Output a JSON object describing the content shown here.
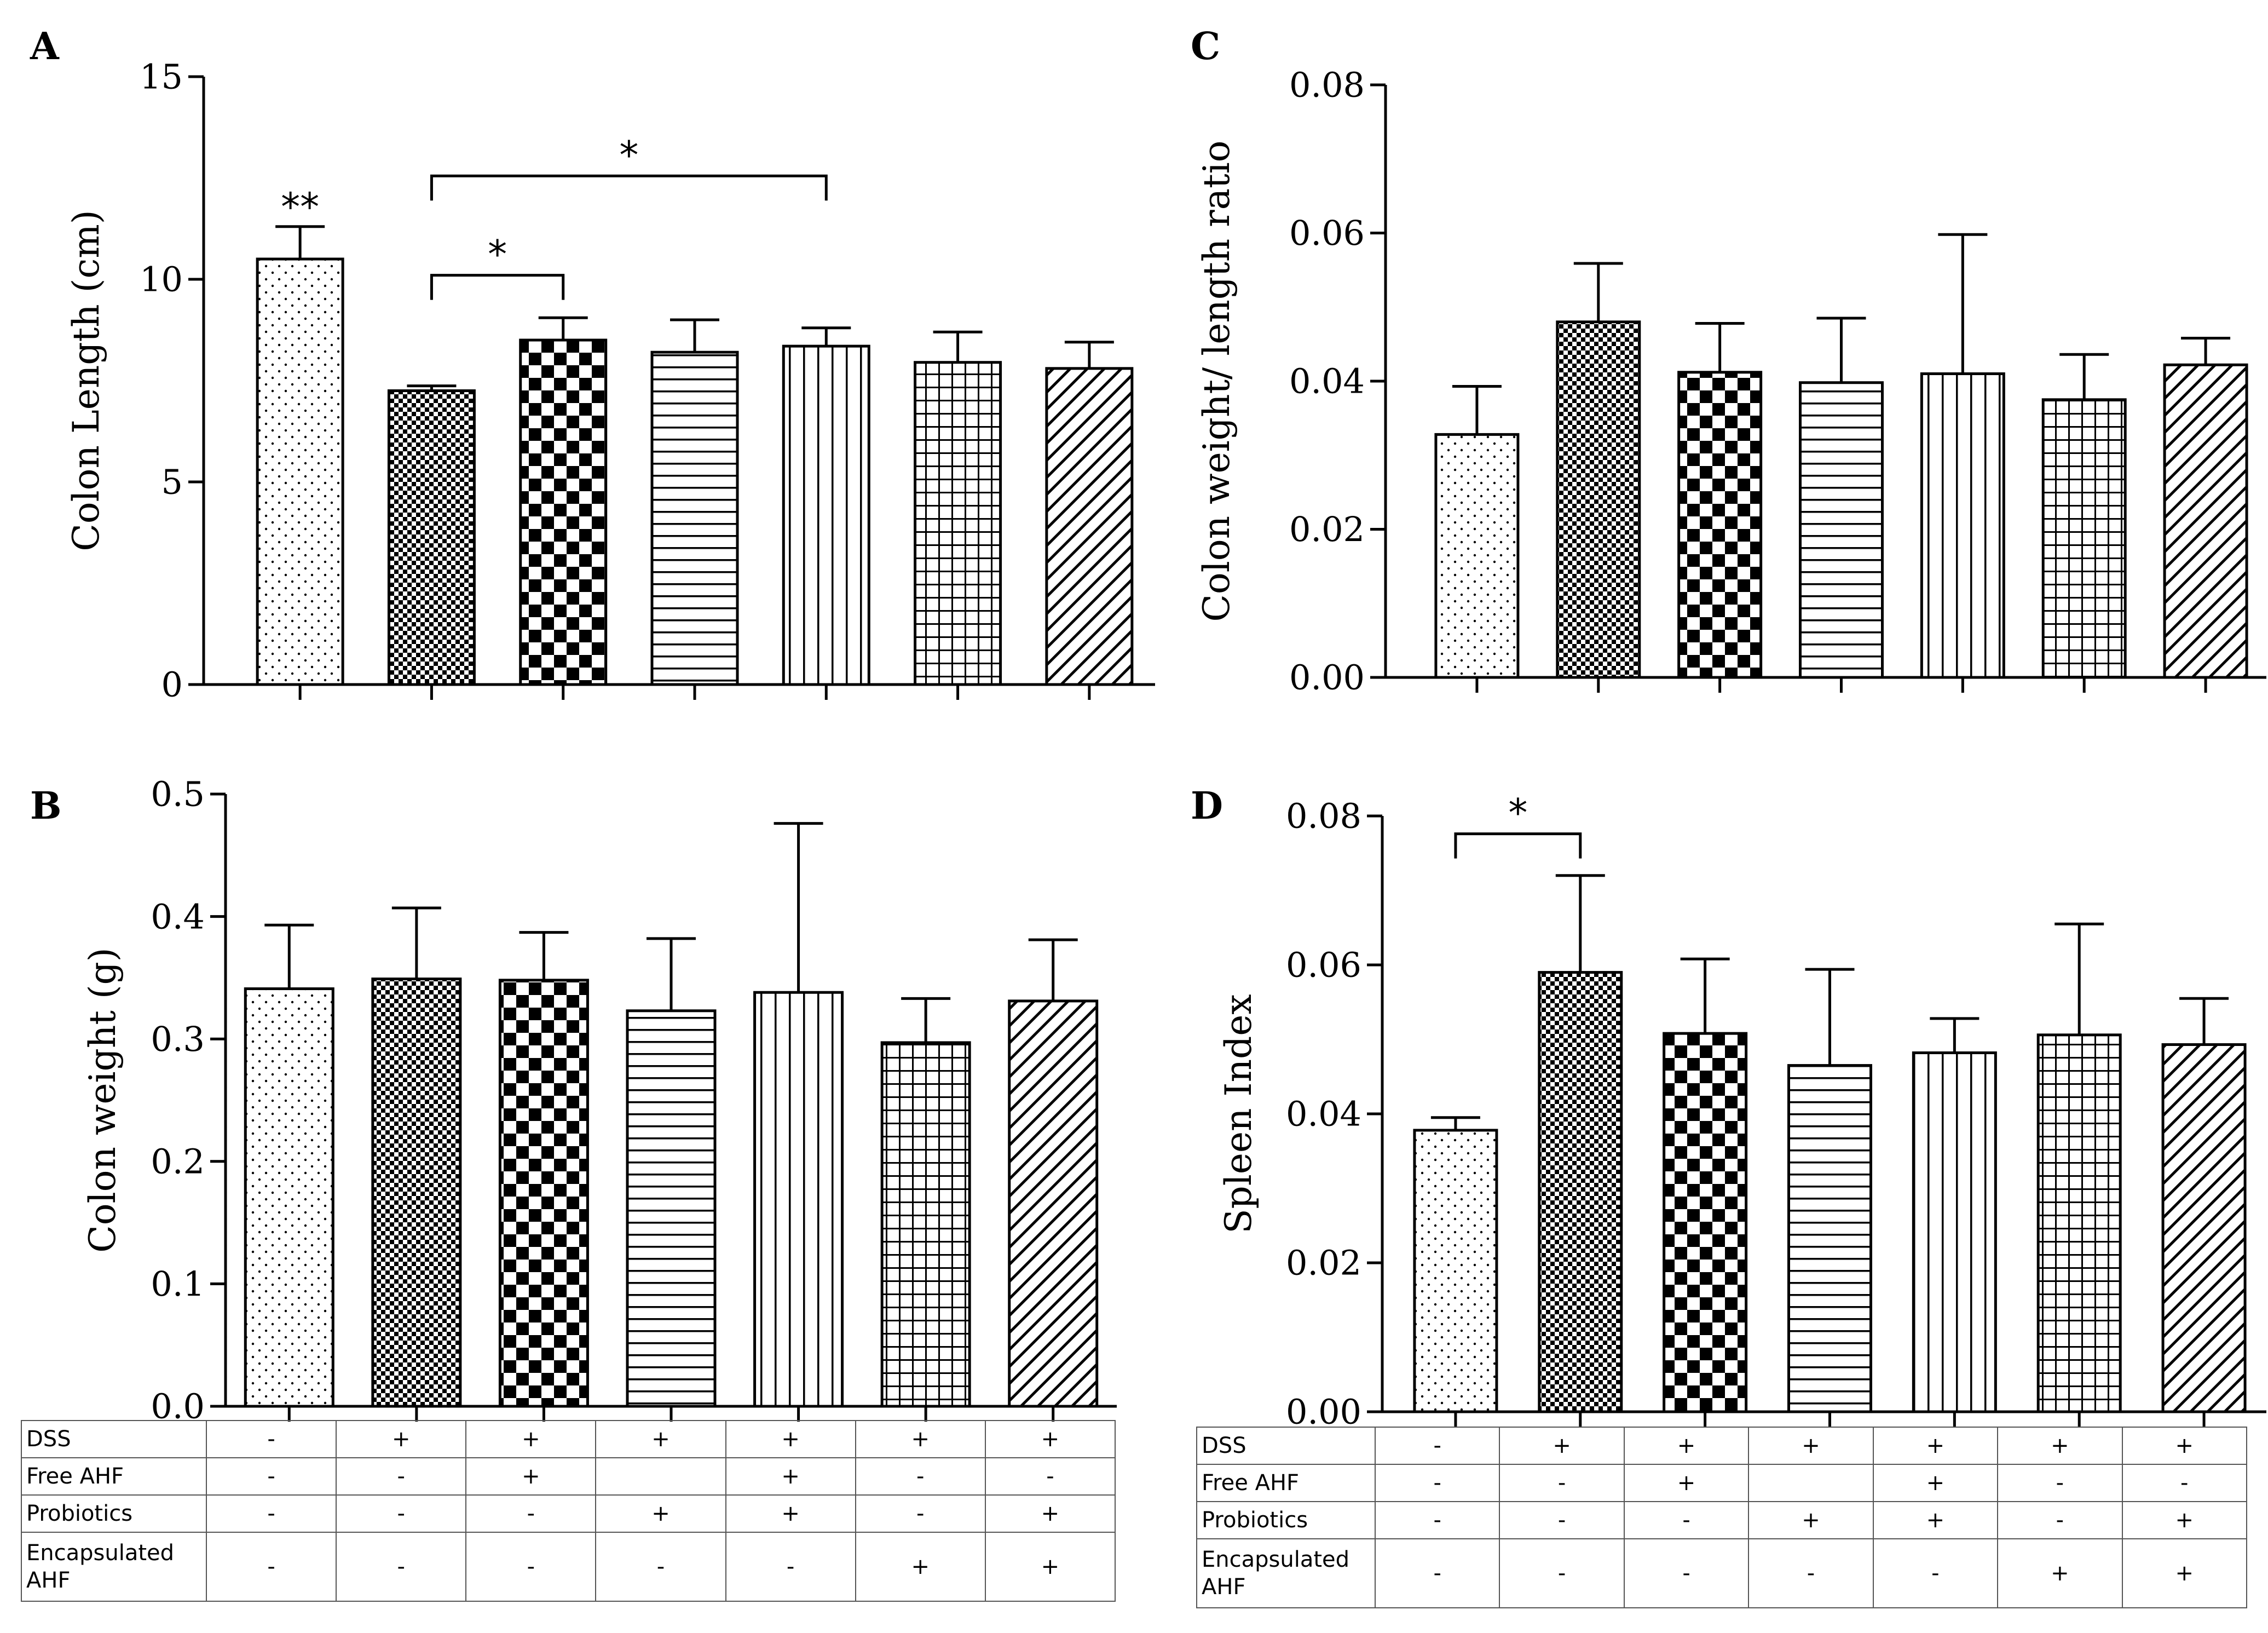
{
  "chart_data": [
    {
      "type": "bar",
      "panel": "A",
      "ylabel": "Colon Length (cm)",
      "ylim": [
        0,
        15
      ],
      "yticks": [
        "0",
        "5",
        "10",
        "15"
      ],
      "values": [
        10.5,
        7.25,
        8.5,
        8.2,
        8.35,
        7.95,
        7.8
      ],
      "errors": [
        0.8,
        0.12,
        0.55,
        0.8,
        0.45,
        0.75,
        0.65
      ],
      "annotations": {
        "bar_label": {
          "bar": 0,
          "text": "**"
        },
        "brackets": [
          {
            "from": 1,
            "to": 2,
            "text": "*"
          },
          {
            "from": 1,
            "to": 4,
            "text": "*"
          }
        ]
      }
    },
    {
      "type": "bar",
      "panel": "B",
      "ylabel": "Colon weight (g)",
      "ylim": [
        0,
        0.5
      ],
      "yticks": [
        "0.0",
        "0.1",
        "0.2",
        "0.3",
        "0.4",
        "0.5"
      ],
      "values": [
        0.341,
        0.349,
        0.348,
        0.323,
        0.338,
        0.297,
        0.331
      ],
      "errors": [
        0.052,
        0.058,
        0.039,
        0.059,
        0.138,
        0.036,
        0.05
      ]
    },
    {
      "type": "bar",
      "panel": "C",
      "ylabel": "Colon weight/ length ratio",
      "ylim": [
        0,
        0.08
      ],
      "yticks": [
        "0.00",
        "0.02",
        "0.04",
        "0.06",
        "0.08"
      ],
      "values": [
        0.0328,
        0.048,
        0.0412,
        0.0398,
        0.041,
        0.0375,
        0.0422
      ],
      "errors": [
        0.0065,
        0.0079,
        0.0066,
        0.0087,
        0.0188,
        0.0061,
        0.0036
      ]
    },
    {
      "type": "bar",
      "panel": "D",
      "ylabel": "Spleen Index",
      "ylim": [
        0,
        0.08
      ],
      "yticks": [
        "0.00",
        "0.02",
        "0.04",
        "0.06",
        "0.08"
      ],
      "values": [
        0.0378,
        0.059,
        0.0508,
        0.0465,
        0.0482,
        0.0506,
        0.0493
      ],
      "errors": [
        0.0017,
        0.013,
        0.01,
        0.0129,
        0.0046,
        0.0149,
        0.0062
      ],
      "annotations": {
        "brackets": [
          {
            "from": 0,
            "to": 1,
            "text": "*"
          }
        ]
      }
    }
  ],
  "treatment_table": {
    "rows": [
      {
        "label": "DSS",
        "values": [
          "-",
          "+",
          "+",
          "+",
          "+",
          "+",
          "+"
        ]
      },
      {
        "label": "Free AHF",
        "values": [
          "-",
          "-",
          "+",
          "",
          "+",
          "-",
          "-"
        ]
      },
      {
        "label": "Probiotics",
        "values": [
          "-",
          "-",
          "-",
          "+",
          "+",
          "-",
          "+"
        ]
      },
      {
        "label": "Encapsulated AHF",
        "values": [
          "-",
          "-",
          "-",
          "-",
          "-",
          "+",
          "+"
        ]
      }
    ]
  }
}
